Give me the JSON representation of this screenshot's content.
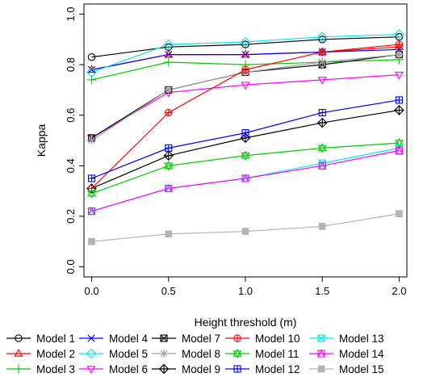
{
  "chart_data": {
    "type": "line",
    "xlabel": "Height threshold (m)",
    "ylabel": "Kappa",
    "x": [
      0.0,
      0.5,
      1.0,
      1.5,
      2.0
    ],
    "x_ticks": [
      "0.0",
      "0.5",
      "1.0",
      "1.5",
      "2.0"
    ],
    "y_ticks": [
      "0.0",
      "0.2",
      "0.4",
      "0.6",
      "0.8",
      "1.0"
    ],
    "xlim": [
      -0.05,
      2.05
    ],
    "ylim": [
      -0.04,
      1.04
    ],
    "grid": false,
    "legend_position": "bottom",
    "series": [
      {
        "name": "Model 1",
        "color": "#000000",
        "marker": "circle",
        "values": [
          0.83,
          0.87,
          0.88,
          0.9,
          0.91
        ]
      },
      {
        "name": "Model 2",
        "color": "#ff0000",
        "marker": "triangle",
        "values": [
          0.78,
          0.84,
          0.84,
          0.85,
          0.87
        ]
      },
      {
        "name": "Model 3",
        "color": "#00cd00",
        "marker": "plus",
        "values": [
          0.74,
          0.81,
          0.8,
          0.81,
          0.82
        ]
      },
      {
        "name": "Model 4",
        "color": "#0000ff",
        "marker": "x",
        "values": [
          0.78,
          0.84,
          0.84,
          0.85,
          0.86
        ]
      },
      {
        "name": "Model 5",
        "color": "#00e5ee",
        "marker": "diamond",
        "values": [
          0.77,
          0.88,
          0.89,
          0.91,
          0.92
        ]
      },
      {
        "name": "Model 6",
        "color": "#ff00ff",
        "marker": "triangle-down",
        "values": [
          0.51,
          0.69,
          0.72,
          0.74,
          0.76
        ]
      },
      {
        "name": "Model 7",
        "color": "#000000",
        "marker": "square-x",
        "values": [
          0.51,
          0.7,
          0.77,
          0.8,
          0.84
        ]
      },
      {
        "name": "Model 8",
        "color": "#a0a0a0",
        "marker": "star",
        "values": [
          0.5,
          0.7,
          0.77,
          0.81,
          0.84
        ]
      },
      {
        "name": "Model 9",
        "color": "#000000",
        "marker": "diamond-plus",
        "values": [
          0.31,
          0.44,
          0.51,
          0.57,
          0.62
        ]
      },
      {
        "name": "Model 10",
        "color": "#ff0000",
        "marker": "circle-plus",
        "values": [
          0.31,
          0.61,
          0.78,
          0.85,
          0.88
        ]
      },
      {
        "name": "Model 11",
        "color": "#00cd00",
        "marker": "star-of-david",
        "values": [
          0.29,
          0.4,
          0.44,
          0.47,
          0.49
        ]
      },
      {
        "name": "Model 12",
        "color": "#0000ff",
        "marker": "square-plus",
        "values": [
          0.35,
          0.47,
          0.53,
          0.61,
          0.66
        ]
      },
      {
        "name": "Model 13",
        "color": "#00e5ee",
        "marker": "square-x",
        "values": [
          0.22,
          0.31,
          0.35,
          0.41,
          0.47
        ]
      },
      {
        "name": "Model 14",
        "color": "#ff00ff",
        "marker": "square-triangle",
        "values": [
          0.22,
          0.31,
          0.35,
          0.4,
          0.46
        ]
      },
      {
        "name": "Model 15",
        "color": "#b4b4b4",
        "marker": "filled-square",
        "values": [
          0.1,
          0.13,
          0.14,
          0.16,
          0.21
        ]
      }
    ]
  }
}
